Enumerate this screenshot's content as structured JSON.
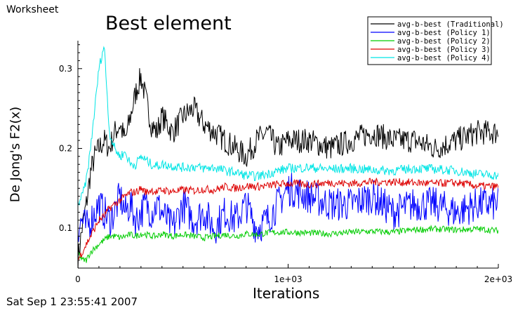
{
  "worksheet_label": "Worksheet",
  "timestamp": "Sat Sep 1 23:55:41 2007",
  "chart_data": {
    "type": "line",
    "title": "Best element",
    "xlabel": "Iterations",
    "ylabel": "De Jong's F2(x)",
    "xlim": [
      0,
      2000
    ],
    "ylim": [
      0.05,
      0.335
    ],
    "x_ticks": [
      {
        "value": 0,
        "label": "0"
      },
      {
        "value": 1000,
        "label": "1e+03"
      },
      {
        "value": 2000,
        "label": "2e+03"
      }
    ],
    "y_ticks": [
      {
        "value": 0.1,
        "label": "0.1"
      },
      {
        "value": 0.2,
        "label": "0.2"
      },
      {
        "value": 0.3,
        "label": "0.3"
      }
    ],
    "legend_position": "top-right",
    "series": [
      {
        "name": "avg-b-best (Traditional)",
        "color": "#000000",
        "x": [
          0,
          20,
          40,
          60,
          80,
          100,
          125,
          150,
          175,
          200,
          225,
          250,
          275,
          300,
          325,
          350,
          375,
          400,
          450,
          500,
          550,
          600,
          650,
          700,
          750,
          800,
          850,
          900,
          950,
          1000,
          1100,
          1200,
          1300,
          1400,
          1500,
          1600,
          1700,
          1800,
          1900,
          2000
        ],
        "y": [
          0.06,
          0.1,
          0.13,
          0.17,
          0.19,
          0.2,
          0.21,
          0.2,
          0.22,
          0.23,
          0.21,
          0.24,
          0.27,
          0.29,
          0.26,
          0.23,
          0.22,
          0.24,
          0.22,
          0.24,
          0.25,
          0.23,
          0.22,
          0.21,
          0.2,
          0.19,
          0.21,
          0.22,
          0.2,
          0.21,
          0.21,
          0.2,
          0.21,
          0.22,
          0.21,
          0.21,
          0.2,
          0.21,
          0.22,
          0.22
        ],
        "noise": 0.016
      },
      {
        "name": "avg-b-best (Policy 1)",
        "color": "#0000ff",
        "x": [
          0,
          20,
          40,
          60,
          80,
          100,
          125,
          150,
          175,
          200,
          225,
          250,
          275,
          300,
          325,
          350,
          375,
          400,
          450,
          500,
          550,
          600,
          650,
          700,
          750,
          800,
          850,
          900,
          950,
          1000,
          1100,
          1200,
          1300,
          1400,
          1500,
          1600,
          1700,
          1800,
          1900,
          2000
        ],
        "y": [
          0.1,
          0.11,
          0.1,
          0.11,
          0.12,
          0.13,
          0.12,
          0.11,
          0.12,
          0.14,
          0.12,
          0.13,
          0.11,
          0.12,
          0.13,
          0.12,
          0.13,
          0.12,
          0.1,
          0.13,
          0.11,
          0.12,
          0.1,
          0.12,
          0.11,
          0.13,
          0.1,
          0.11,
          0.13,
          0.15,
          0.14,
          0.13,
          0.13,
          0.14,
          0.12,
          0.13,
          0.13,
          0.12,
          0.13,
          0.13
        ],
        "noise": 0.022
      },
      {
        "name": "avg-b-best (Policy 2)",
        "color": "#00cc00",
        "x": [
          0,
          20,
          40,
          60,
          80,
          100,
          125,
          150,
          175,
          200,
          225,
          250,
          275,
          300,
          325,
          350,
          375,
          400,
          450,
          500,
          550,
          600,
          650,
          700,
          750,
          800,
          850,
          900,
          950,
          1000,
          1100,
          1200,
          1300,
          1400,
          1500,
          1600,
          1700,
          1800,
          1900,
          2000
        ],
        "y": [
          0.07,
          0.06,
          0.06,
          0.07,
          0.075,
          0.08,
          0.085,
          0.09,
          0.09,
          0.088,
          0.09,
          0.092,
          0.09,
          0.093,
          0.092,
          0.09,
          0.09,
          0.093,
          0.09,
          0.092,
          0.09,
          0.088,
          0.09,
          0.092,
          0.09,
          0.093,
          0.092,
          0.094,
          0.095,
          0.095,
          0.094,
          0.093,
          0.095,
          0.096,
          0.095,
          0.098,
          0.099,
          0.098,
          0.099,
          0.097
        ],
        "noise": 0.004
      },
      {
        "name": "avg-b-best (Policy 3)",
        "color": "#dd0000",
        "x": [
          0,
          20,
          40,
          60,
          80,
          100,
          125,
          150,
          175,
          200,
          225,
          250,
          275,
          300,
          325,
          350,
          375,
          400,
          450,
          500,
          550,
          600,
          650,
          700,
          750,
          800,
          850,
          900,
          950,
          1000,
          1100,
          1200,
          1300,
          1400,
          1500,
          1600,
          1700,
          1800,
          1900,
          2000
        ],
        "y": [
          0.06,
          0.07,
          0.08,
          0.09,
          0.1,
          0.11,
          0.115,
          0.125,
          0.13,
          0.135,
          0.14,
          0.145,
          0.145,
          0.15,
          0.145,
          0.148,
          0.145,
          0.148,
          0.146,
          0.148,
          0.147,
          0.149,
          0.148,
          0.152,
          0.15,
          0.153,
          0.152,
          0.153,
          0.155,
          0.156,
          0.155,
          0.157,
          0.156,
          0.158,
          0.158,
          0.157,
          0.156,
          0.157,
          0.153,
          0.152
        ],
        "noise": 0.005
      },
      {
        "name": "avg-b-best (Policy 4)",
        "color": "#00e5e5",
        "x": [
          0,
          20,
          40,
          60,
          80,
          100,
          125,
          150,
          175,
          200,
          225,
          250,
          275,
          300,
          325,
          350,
          375,
          400,
          450,
          500,
          550,
          600,
          650,
          700,
          750,
          800,
          850,
          900,
          950,
          1000,
          1100,
          1200,
          1300,
          1400,
          1500,
          1600,
          1700,
          1800,
          1900,
          2000
        ],
        "y": [
          0.13,
          0.14,
          0.16,
          0.2,
          0.25,
          0.3,
          0.33,
          0.22,
          0.2,
          0.19,
          0.195,
          0.18,
          0.18,
          0.19,
          0.185,
          0.18,
          0.178,
          0.18,
          0.178,
          0.176,
          0.177,
          0.175,
          0.176,
          0.172,
          0.17,
          0.166,
          0.165,
          0.168,
          0.172,
          0.175,
          0.176,
          0.174,
          0.175,
          0.173,
          0.172,
          0.175,
          0.174,
          0.172,
          0.168,
          0.166
        ],
        "noise": 0.006
      }
    ]
  }
}
